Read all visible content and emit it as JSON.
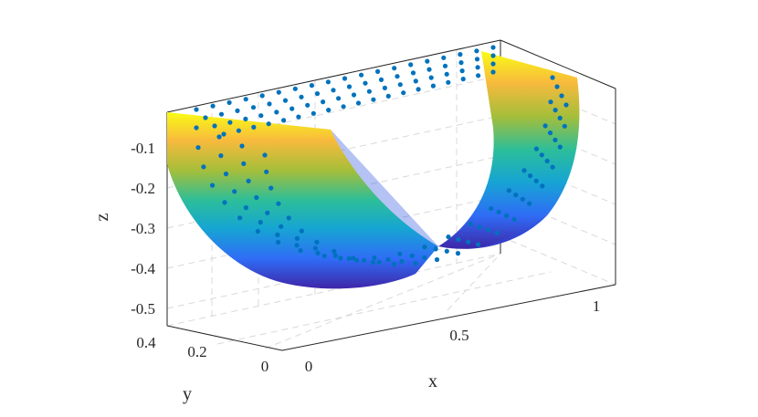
{
  "chart_data": {
    "type": "surface3d",
    "description_series": [
      {
        "kind": "surface",
        "colormap": "parula",
        "x_range": [
          0,
          1
        ],
        "y_range": [
          0,
          0.4
        ],
        "z_min": -0.46,
        "z_max": -0.05
      },
      {
        "kind": "scatter3d",
        "color": "#0072BD"
      }
    ],
    "axes": {
      "x": {
        "label": "x",
        "ticks": [
          "0",
          "0.5",
          "1"
        ],
        "lim": [
          0,
          1.1
        ]
      },
      "y": {
        "label": "y",
        "ticks": [
          "0",
          "0.2",
          "0.4"
        ],
        "lim": [
          0,
          0.4
        ]
      },
      "z": {
        "label": "z",
        "ticks": [
          "-0.1",
          "-0.2",
          "-0.3",
          "-0.4",
          "-0.5"
        ],
        "lim": [
          -0.52,
          0.0
        ]
      }
    },
    "grid": true,
    "colors": {
      "scatter": "#0072BD",
      "axes": "#262626",
      "grid": "#d9d9d9",
      "colormap": [
        "#3E26A8",
        "#2F6DF6",
        "#16A5D3",
        "#2CBE9A",
        "#A5BE3A",
        "#F8BA3D",
        "#F9FB15"
      ]
    }
  }
}
